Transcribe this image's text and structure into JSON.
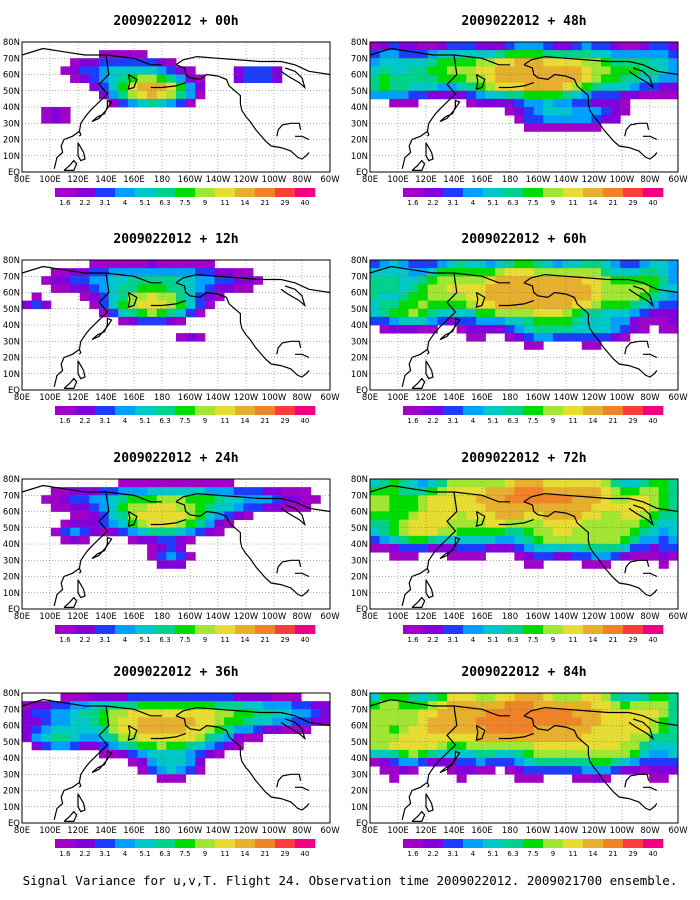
{
  "caption": "Signal Variance for u,v,T. Flight 24. Observation time 2009022012. 2009021700 ensemble.",
  "chart_data": {
    "type": "heatmap",
    "panels": [
      {
        "title": "2009022012 + 00h",
        "col": 0,
        "row": 0,
        "blobs": [
          [
            13,
            5.5,
            7,
            3.2,
            1.6
          ],
          [
            10,
            3,
            12,
            4,
            0.5
          ],
          [
            24,
            3.5,
            6,
            3,
            0.4
          ],
          [
            3,
            8.5,
            4,
            2,
            0.35
          ]
        ],
        "floor": 0
      },
      {
        "title": "2009022012 + 12h",
        "col": 0,
        "row": 1,
        "blobs": [
          [
            13,
            5,
            8,
            3.6,
            1.25
          ],
          [
            13,
            2,
            20,
            4,
            0.6
          ],
          [
            1,
            5,
            3,
            2,
            0.35
          ],
          [
            17,
            9,
            3,
            2,
            0.3
          ]
        ],
        "floor": 0
      },
      {
        "title": "2009022012 + 24h",
        "col": 0,
        "row": 2,
        "blobs": [
          [
            14,
            4.5,
            10,
            4,
            1.2
          ],
          [
            16,
            2,
            24,
            3.5,
            0.7
          ],
          [
            5,
            6,
            4,
            2.5,
            0.4
          ],
          [
            15,
            9,
            4,
            3,
            0.45
          ]
        ],
        "floor": 0
      },
      {
        "title": "2009022012 + 36h",
        "col": 0,
        "row": 3,
        "blobs": [
          [
            14,
            4.5,
            12,
            4.5,
            1.35
          ],
          [
            16,
            2,
            28,
            4,
            0.95
          ],
          [
            3,
            5,
            6,
            3,
            0.6
          ],
          [
            15,
            8.5,
            6,
            3,
            0.55
          ]
        ],
        "floor": 0
      },
      {
        "title": "2009022012 + 48h",
        "col": 1,
        "row": 0,
        "blobs": [
          [
            17,
            4,
            10,
            4.5,
            1.2
          ],
          [
            16,
            3,
            34,
            5,
            0.95
          ],
          [
            1,
            5,
            6,
            3,
            0.5
          ],
          [
            20,
            8.5,
            10,
            3,
            0.5
          ]
        ],
        "floor": 0.2
      },
      {
        "title": "2009022012 + 60h",
        "col": 1,
        "row": 1,
        "blobs": [
          [
            17,
            4,
            12,
            5,
            1.1
          ],
          [
            16,
            3,
            34,
            6,
            1.0
          ],
          [
            3,
            6,
            8,
            3,
            0.55
          ],
          [
            20,
            8,
            12,
            3,
            0.5
          ]
        ],
        "floor": 0.35
      },
      {
        "title": "2009022012 + 72h",
        "col": 1,
        "row": 2,
        "blobs": [
          [
            17,
            1.5,
            12,
            4,
            1.2
          ],
          [
            16,
            3,
            40,
            7,
            1.1
          ],
          [
            5,
            6,
            10,
            3,
            0.6
          ],
          [
            22,
            7,
            12,
            4,
            0.6
          ]
        ],
        "floor": 0.45
      },
      {
        "title": "2009022012 + 84h",
        "col": 1,
        "row": 3,
        "blobs": [
          [
            15,
            2.5,
            14,
            5,
            1.4
          ],
          [
            16,
            3,
            40,
            7,
            1.15
          ],
          [
            3,
            6,
            10,
            3,
            0.7
          ],
          [
            22,
            7,
            14,
            4,
            0.65
          ]
        ],
        "floor": 0.5
      }
    ],
    "x_ticks": [
      "80E",
      "100E",
      "120E",
      "140E",
      "160E",
      "180",
      "160W",
      "140W",
      "120W",
      "100W",
      "80W",
      "60W"
    ],
    "y_ticks": [
      "EQ",
      "10N",
      "20N",
      "30N",
      "40N",
      "50N",
      "60N",
      "70N",
      "80N"
    ],
    "colorbar": {
      "labels": [
        "1.6",
        "2.2",
        "3.1",
        "4",
        "5.1",
        "6.3",
        "7.5",
        "9",
        "11",
        "14",
        "21",
        "29",
        "40"
      ],
      "colors": [
        "#a000c8",
        "#8200dc",
        "#1e3cff",
        "#00a0ff",
        "#00c8c8",
        "#00d28c",
        "#00dc00",
        "#a0e632",
        "#e6dc32",
        "#e6af2d",
        "#f08228",
        "#fa3c3c",
        "#f00082"
      ]
    }
  }
}
